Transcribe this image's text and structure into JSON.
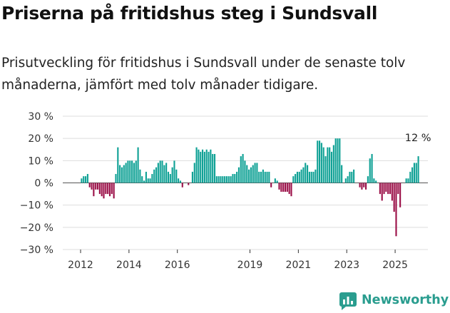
{
  "header": {
    "title": "Priserna på fritidshus steg i Sundsvall",
    "subtitle": "Prisutveckling för fritidshus i Sundsvall under de senaste tolv månaderna, jämfört med tolv månader tidigare."
  },
  "brand": {
    "name": "Newsworthy",
    "icon": "newsworthy-logo-icon"
  },
  "colors": {
    "positive": "#0fa195",
    "negative": "#9b1048",
    "axis": "#333333",
    "grid": "#dddddd"
  },
  "chart_data": {
    "type": "bar",
    "title": "Priserna på fritidshus steg i Sundsvall",
    "subtitle": "Prisutveckling för fritidshus i Sundsvall under de senaste tolv månaderna, jämfört med tolv månader tidigare.",
    "xlabel": "",
    "ylabel": "",
    "ylim": [
      -30,
      30
    ],
    "yticks": [
      30,
      20,
      10,
      0,
      -10,
      -20,
      -30
    ],
    "ytick_labels": [
      "30 %",
      "20 %",
      "10 %",
      "0 %",
      "−10 %",
      "−20 %",
      "−30 %"
    ],
    "xticks": [
      "2012",
      "2014",
      "2016",
      "2019",
      "2021",
      "2023",
      "2025"
    ],
    "grid": "horizontal",
    "legend": "none",
    "start": "2012-01",
    "series": [
      {
        "values": [
          2,
          3,
          3,
          4,
          -2,
          -3,
          -6,
          -3,
          -3,
          -5,
          -6,
          -7,
          -5,
          -5,
          -6,
          -5,
          -7,
          4,
          16,
          8,
          7,
          8,
          9,
          10,
          10,
          10,
          9,
          10,
          16,
          6,
          3,
          1,
          5,
          2,
          2,
          4,
          6,
          7,
          9,
          10,
          10,
          8,
          9,
          5,
          4,
          7,
          10,
          6,
          2,
          1,
          -2,
          0,
          0,
          -1,
          0,
          5,
          9,
          16,
          15,
          14,
          15,
          14,
          15,
          14,
          15,
          13,
          13,
          3,
          3,
          3,
          3,
          3,
          3,
          3,
          3,
          4,
          4,
          5,
          7,
          12,
          13,
          10,
          8,
          6,
          7,
          8,
          9,
          9,
          5,
          5,
          6,
          5,
          5,
          5,
          -2,
          0,
          2,
          1,
          -3,
          -4,
          -4,
          -4,
          -4,
          -5,
          -6,
          3,
          4,
          5,
          5,
          6,
          7,
          9,
          8,
          5,
          5,
          5,
          6,
          19,
          19,
          18,
          16,
          12,
          16,
          16,
          14,
          17,
          20,
          20,
          20,
          8,
          0,
          2,
          3,
          5,
          5,
          6,
          0,
          0,
          -2,
          -3,
          -2,
          -3,
          3,
          11,
          13,
          2,
          1,
          0,
          -5,
          -8,
          -5,
          -4,
          -5,
          -5,
          -8,
          -13,
          -24,
          -5,
          -11,
          0,
          0,
          2,
          2,
          5,
          7,
          9,
          9,
          12
        ]
      }
    ],
    "annotations": [
      {
        "text": "12 %"
      }
    ]
  }
}
